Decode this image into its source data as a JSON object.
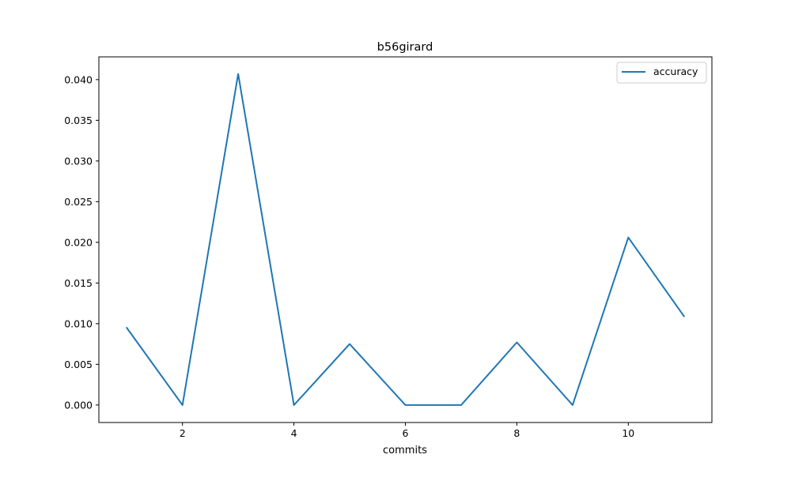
{
  "chart_data": {
    "type": "line",
    "title": "b56girard",
    "xlabel": "commits",
    "ylabel": "",
    "xlim": [
      0.5,
      11.5
    ],
    "ylim": [
      -0.00215,
      0.0428
    ],
    "xticks": [
      2,
      4,
      6,
      8,
      10
    ],
    "xtick_labels": [
      "2",
      "4",
      "6",
      "8",
      "10"
    ],
    "yticks": [
      0.0,
      0.005,
      0.01,
      0.015,
      0.02,
      0.025,
      0.03,
      0.035,
      0.04
    ],
    "ytick_labels": [
      "0.000",
      "0.005",
      "0.010",
      "0.015",
      "0.020",
      "0.025",
      "0.030",
      "0.035",
      "0.040"
    ],
    "grid": false,
    "legend_position": "top-right",
    "series": [
      {
        "name": "accuracy",
        "color": "#1f77b4",
        "x": [
          1,
          2,
          3,
          4,
          5,
          6,
          7,
          8,
          9,
          10,
          11
        ],
        "y": [
          0.0095,
          0.0,
          0.0407,
          0.0,
          0.0075,
          0.0,
          0.0,
          0.0077,
          0.0,
          0.0206,
          0.0109
        ]
      }
    ]
  }
}
